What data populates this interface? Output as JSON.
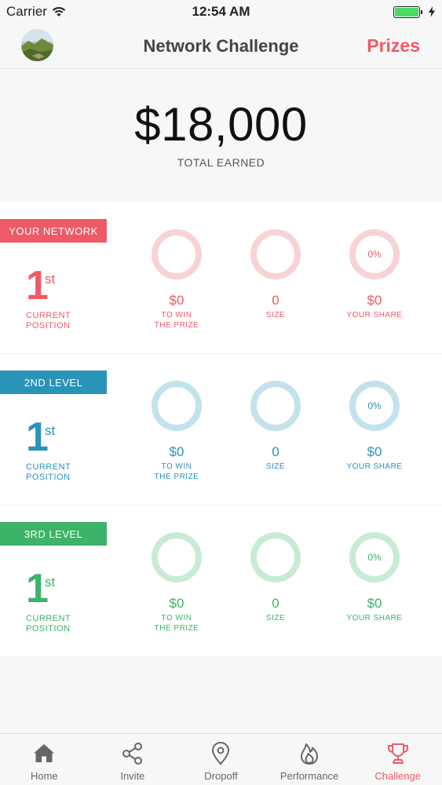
{
  "status_bar": {
    "carrier": "Carrier",
    "time": "12:54 AM"
  },
  "header": {
    "title": "Network Challenge",
    "right_button": "Prizes"
  },
  "earned": {
    "amount": "$18,000",
    "label": "TOTAL EARNED"
  },
  "sections": [
    {
      "tag": "YOUR NETWORK",
      "color": "#ef5a66",
      "ring_color": "#f8d3d6",
      "position": {
        "number": "1",
        "suffix": "st",
        "label": "CURRENT POSITION"
      },
      "stats": [
        {
          "value": "$0",
          "label": "TO WIN THE PRIZE",
          "ring_text": ""
        },
        {
          "value": "0",
          "label": "SIZE",
          "ring_text": ""
        },
        {
          "value": "$0",
          "label": "YOUR SHARE",
          "ring_text": "0%"
        }
      ]
    },
    {
      "tag": "2ND LEVEL",
      "color": "#2a93b8",
      "ring_color": "#c2e2ec",
      "position": {
        "number": "1",
        "suffix": "st",
        "label": "CURRENT POSITION"
      },
      "stats": [
        {
          "value": "$0",
          "label": "TO WIN THE PRIZE",
          "ring_text": ""
        },
        {
          "value": "0",
          "label": "SIZE",
          "ring_text": ""
        },
        {
          "value": "$0",
          "label": "YOUR SHARE",
          "ring_text": "0%"
        }
      ]
    },
    {
      "tag": "3RD LEVEL",
      "color": "#3bb369",
      "ring_color": "#c8ebd4",
      "position": {
        "number": "1",
        "suffix": "st",
        "label": "CURRENT POSITION"
      },
      "stats": [
        {
          "value": "$0",
          "label": "TO WIN THE PRIZE",
          "ring_text": ""
        },
        {
          "value": "0",
          "label": "SIZE",
          "ring_text": ""
        },
        {
          "value": "$0",
          "label": "YOUR SHARE",
          "ring_text": "0%"
        }
      ]
    }
  ],
  "tab_bar": {
    "items": [
      {
        "label": "Home",
        "icon": "home-icon"
      },
      {
        "label": "Invite",
        "icon": "share-icon"
      },
      {
        "label": "Dropoff",
        "icon": "map-pin-icon"
      },
      {
        "label": "Performance",
        "icon": "flame-icon"
      },
      {
        "label": "Challenge",
        "icon": "trophy-icon",
        "active": true
      }
    ]
  },
  "colors": {
    "accent": "#ef5a66",
    "battery": "#4cd964"
  }
}
